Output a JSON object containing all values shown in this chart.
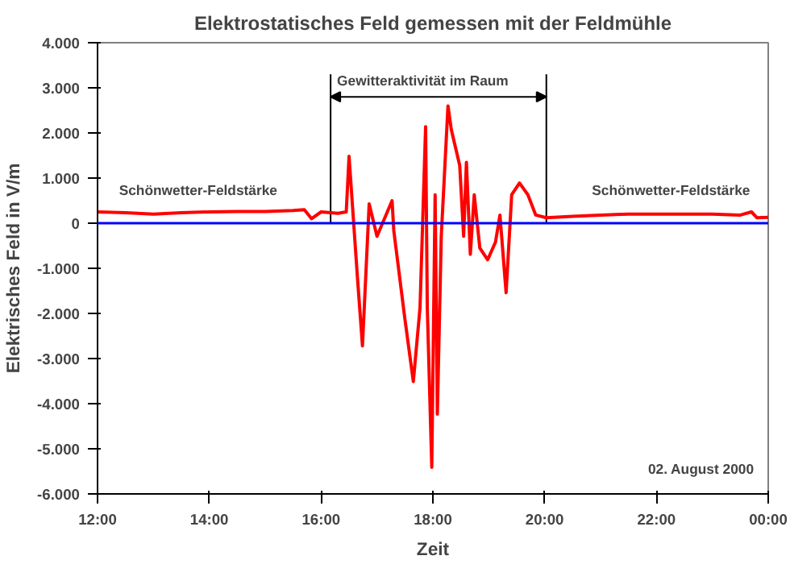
{
  "chart_data": {
    "type": "line",
    "title": "Elektrostatisches Feld gemessen mit der Feldmühle",
    "xlabel": "Zeit",
    "ylabel": "Elektrisches Feld in V/m",
    "x": [
      12,
      12.5,
      13,
      13.5,
      14,
      14.5,
      15,
      15.5,
      15.7,
      15.83,
      16.0,
      16.3,
      16.45,
      16.5,
      16.65,
      16.74,
      16.86,
      17.0,
      17.27,
      17.3,
      17.5,
      17.65,
      17.77,
      17.87,
      17.9,
      17.98,
      18.04,
      18.08,
      18.15,
      18.27,
      18.33,
      18.48,
      18.55,
      18.6,
      18.67,
      18.74,
      18.84,
      18.98,
      19.12,
      19.2,
      19.31,
      19.41,
      19.55,
      19.7,
      19.84,
      20.03,
      20.5,
      21,
      21.5,
      22,
      22.5,
      23,
      23.5,
      23.7,
      23.8,
      24
    ],
    "series": [
      {
        "color": "#ff0000",
        "values": [
          250,
          230,
          200,
          230,
          250,
          260,
          260,
          280,
          300,
          100,
          250,
          220,
          250,
          1480,
          -1200,
          -2720,
          430,
          -290,
          500,
          -160,
          -2130,
          -3510,
          -1870,
          2140,
          -1870,
          -5410,
          630,
          -4230,
          -290,
          2600,
          2070,
          1280,
          -290,
          1350,
          -690,
          630,
          -550,
          -810,
          -420,
          180,
          -1540,
          630,
          890,
          630,
          180,
          120,
          150,
          180,
          200,
          200,
          200,
          200,
          180,
          250,
          120,
          130
        ]
      }
    ],
    "xlim": [
      12,
      24
    ],
    "xticks": [
      {
        "value": 12,
        "label": "12:00"
      },
      {
        "value": 14,
        "label": "14:00"
      },
      {
        "value": 16,
        "label": "16:00"
      },
      {
        "value": 18,
        "label": "18:00"
      },
      {
        "value": 20,
        "label": "20:00"
      },
      {
        "value": 22,
        "label": "22:00"
      },
      {
        "value": 24,
        "label": "00:00"
      }
    ],
    "ylim": [
      -6000,
      4000
    ],
    "yticks": [
      {
        "value": 4000,
        "label": "4.000"
      },
      {
        "value": 3000,
        "label": "3.000"
      },
      {
        "value": 2000,
        "label": "2.000"
      },
      {
        "value": 1000,
        "label": "1.000"
      },
      0,
      {
        "value": -1000,
        "label": "-1.000"
      },
      {
        "value": -2000,
        "label": "-2.000"
      },
      {
        "value": -3000,
        "label": "-3.000"
      },
      {
        "value": -4000,
        "label": "-4.000"
      },
      {
        "value": -5000,
        "label": "-5.000"
      },
      {
        "value": -6000,
        "label": "-6.000"
      }
    ],
    "ref_lines": [
      {
        "axis": "y",
        "value": 0,
        "color": "#0000ff"
      },
      {
        "axis": "x",
        "value": 16.17,
        "color": "#000000"
      },
      {
        "axis": "x",
        "value": 20.03,
        "color": "#000000"
      }
    ],
    "annotations": [
      "Schönwetter-Feldstärke",
      "Schönwetter-Feldstärke",
      "02.  August 2000",
      {
        "text": "Gewitteraktivität im Raum",
        "x": 20.03,
        "y": 2800
      }
    ],
    "grid": false
  }
}
